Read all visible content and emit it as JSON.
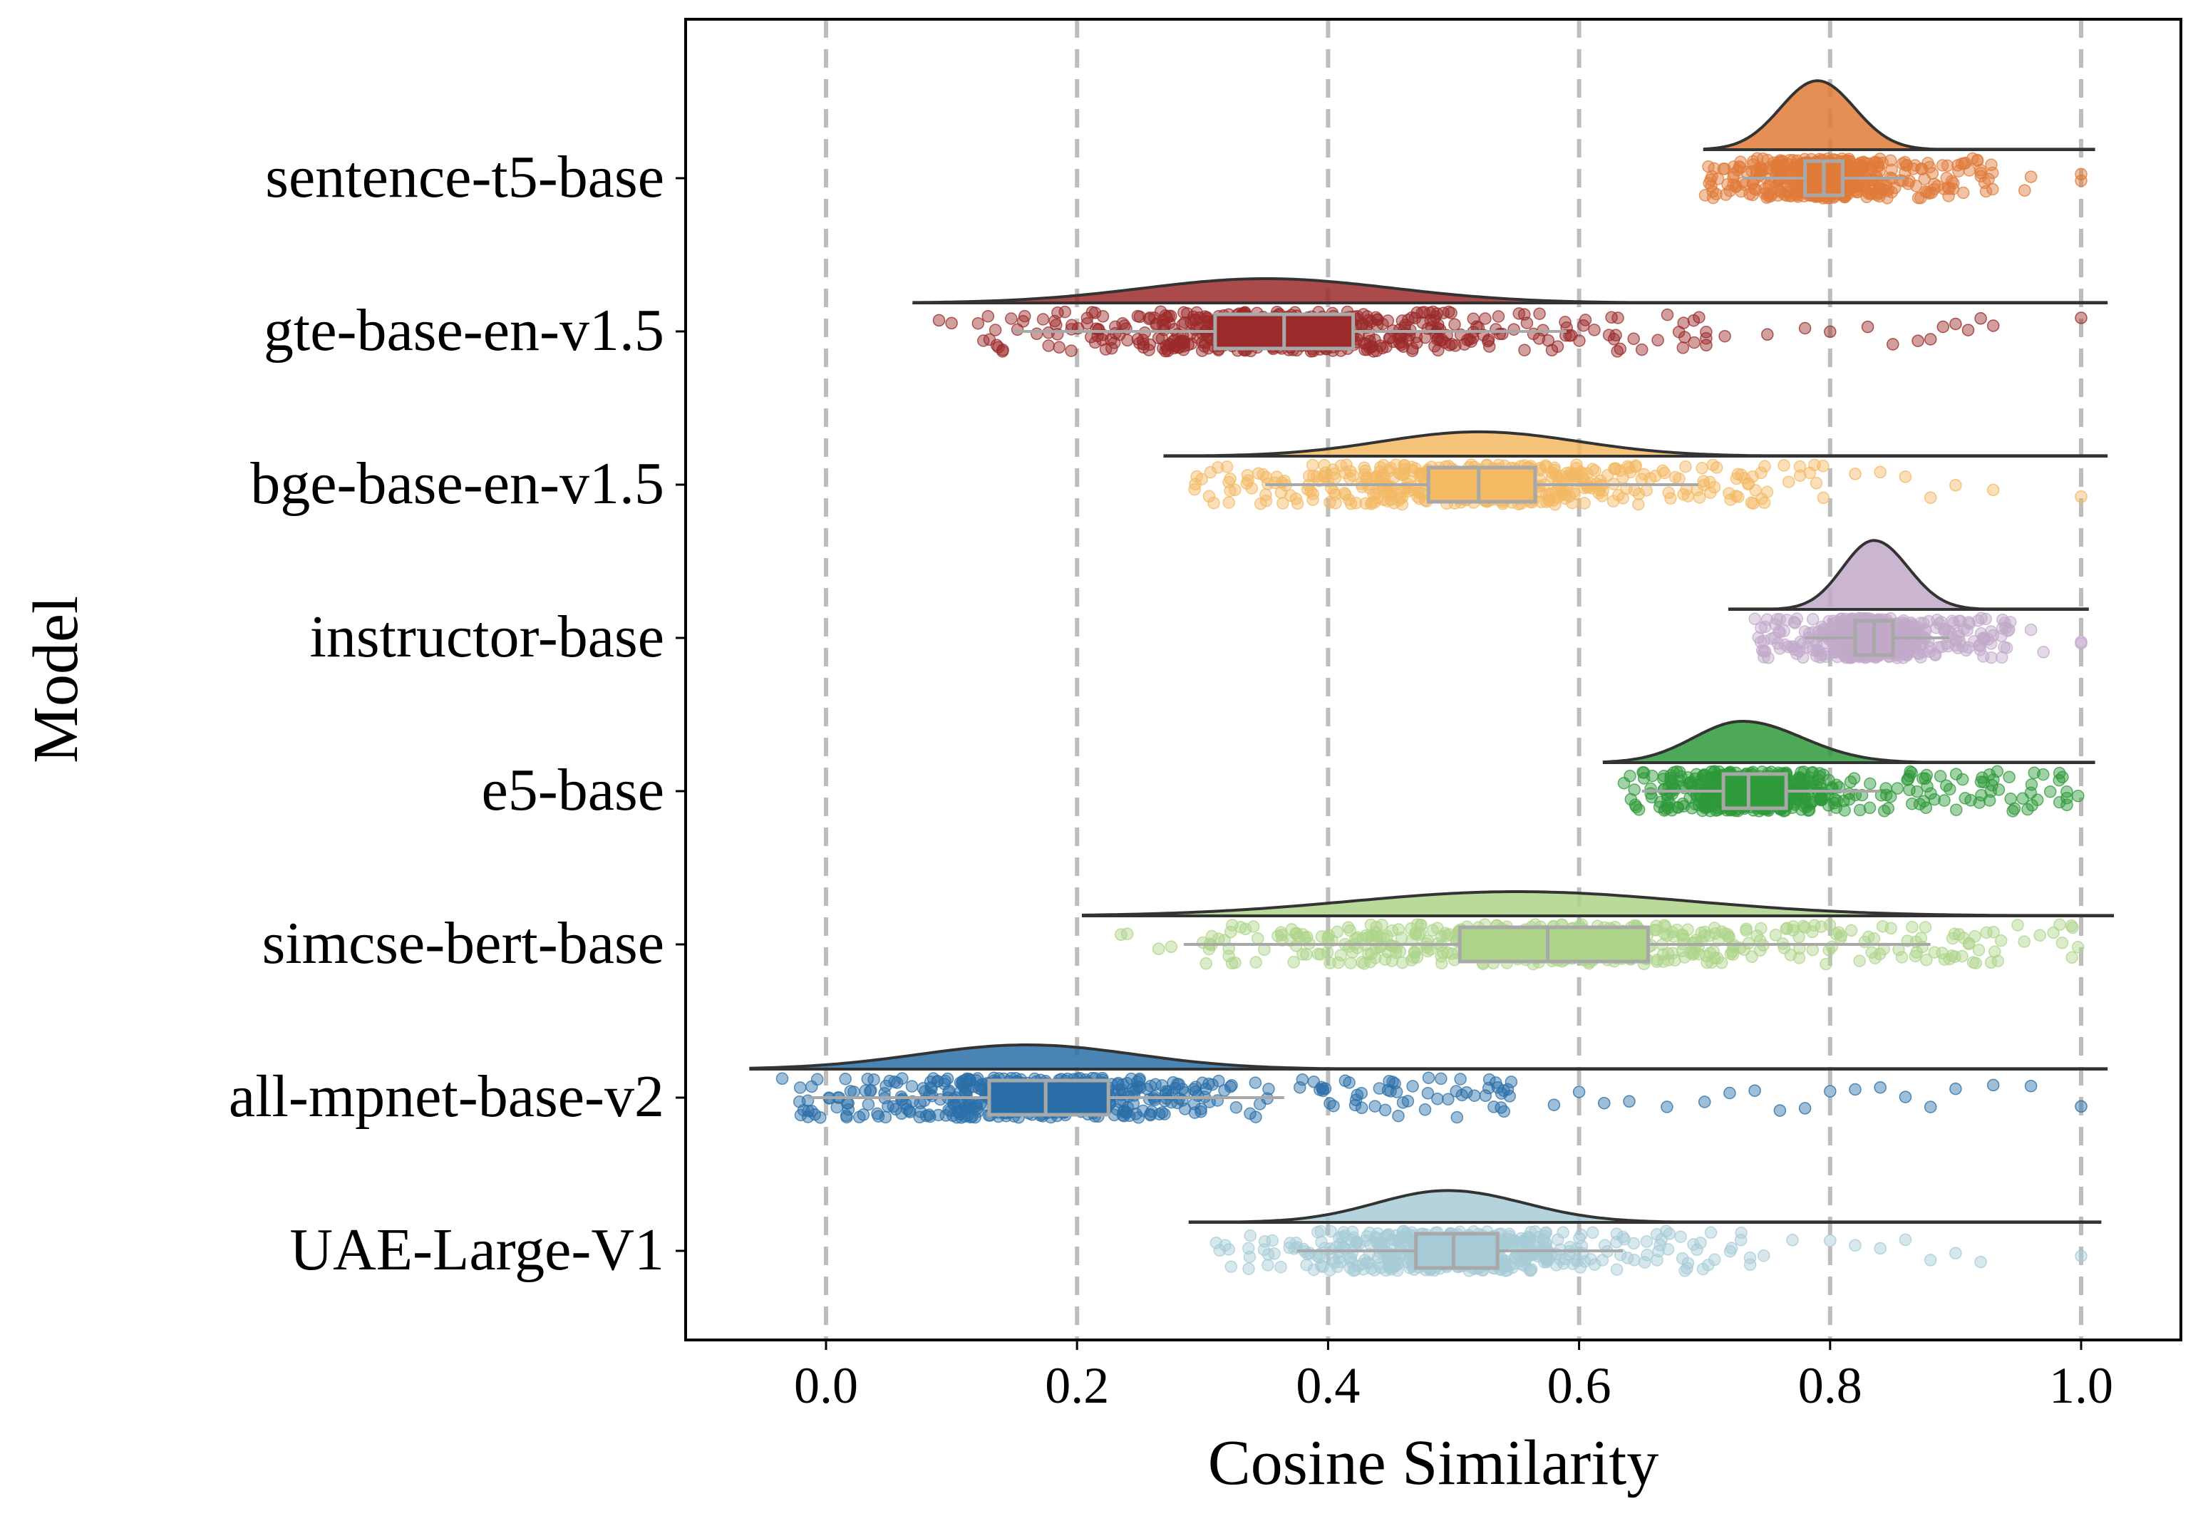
{
  "chart_data": {
    "type": "raincloud",
    "xlabel": "Cosine Similarity",
    "ylabel": "Model",
    "xlim": [
      -0.11,
      1.08
    ],
    "x_ticks": [
      0.0,
      0.2,
      0.4,
      0.6,
      0.8,
      1.0
    ],
    "x_tick_labels": [
      "0.0",
      "0.2",
      "0.4",
      "0.6",
      "0.8",
      "1.0"
    ],
    "grid": "vertical dashed at x ticks",
    "series": [
      {
        "name": "sentence-t5-base",
        "color": "#e07b39",
        "kde_peak": 0.79,
        "kde_range": [
          0.7,
          1.01
        ],
        "box": {
          "whisker_low": 0.73,
          "q1": 0.78,
          "median": 0.795,
          "q3": 0.81,
          "whisker_high": 0.86
        },
        "points_range": [
          0.7,
          0.93
        ],
        "outliers": [
          0.955,
          0.96,
          1.0,
          1.0
        ]
      },
      {
        "name": "gte-base-en-v1.5",
        "color": "#9b2a2a",
        "kde_peak": 0.35,
        "kde_range": [
          0.07,
          1.02
        ],
        "box": {
          "whisker_low": 0.15,
          "q1": 0.31,
          "median": 0.365,
          "q3": 0.42,
          "whisker_high": 0.59
        },
        "points_range": [
          0.12,
          0.72
        ],
        "outliers": [
          0.09,
          0.1,
          0.75,
          0.78,
          0.8,
          0.83,
          0.85,
          0.87,
          0.88,
          0.89,
          0.9,
          0.91,
          0.92,
          0.93,
          1.0
        ]
      },
      {
        "name": "bge-base-en-v1.5",
        "color": "#f3b963",
        "kde_peak": 0.52,
        "kde_range": [
          0.27,
          1.02
        ],
        "box": {
          "whisker_low": 0.35,
          "q1": 0.48,
          "median": 0.52,
          "q3": 0.565,
          "whisker_high": 0.695
        },
        "points_range": [
          0.29,
          0.8
        ],
        "outliers": [
          0.82,
          0.84,
          0.86,
          0.88,
          0.9,
          0.93,
          1.0
        ]
      },
      {
        "name": "instructor-base",
        "color": "#c2a9c9",
        "kde_peak": 0.835,
        "kde_range": [
          0.72,
          1.005
        ],
        "box": {
          "whisker_low": 0.78,
          "q1": 0.82,
          "median": 0.835,
          "q3": 0.85,
          "whisker_high": 0.895
        },
        "points_range": [
          0.74,
          0.945
        ],
        "outliers": [
          0.96,
          0.97,
          1.0,
          1.0
        ]
      },
      {
        "name": "e5-base",
        "color": "#2e9a3a",
        "kde_peak": 0.73,
        "kde_range": [
          0.62,
          1.01
        ],
        "box": {
          "whisker_low": 0.65,
          "q1": 0.715,
          "median": 0.735,
          "q3": 0.765,
          "whisker_high": 0.84
        },
        "points_range": [
          0.635,
          1.0
        ],
        "outliers": []
      },
      {
        "name": "simcse-bert-base",
        "color": "#aed48a",
        "kde_peak": 0.55,
        "kde_range": [
          0.205,
          1.025
        ],
        "box": {
          "whisker_low": 0.285,
          "q1": 0.505,
          "median": 0.575,
          "q3": 0.655,
          "whisker_high": 0.88
        },
        "points_range": [
          0.3,
          1.0
        ],
        "outliers": [
          0.235,
          0.24,
          0.265,
          0.275
        ]
      },
      {
        "name": "all-mpnet-base-v2",
        "color": "#2a6fa8",
        "kde_peak": 0.16,
        "kde_range": [
          -0.06,
          1.02
        ],
        "box": {
          "whisker_low": -0.015,
          "q1": 0.13,
          "median": 0.175,
          "q3": 0.225,
          "whisker_high": 0.365
        },
        "points_range": [
          -0.035,
          0.55
        ],
        "outliers": [
          0.58,
          0.6,
          0.62,
          0.64,
          0.67,
          0.7,
          0.72,
          0.74,
          0.76,
          0.78,
          0.8,
          0.82,
          0.84,
          0.86,
          0.88,
          0.9,
          0.93,
          0.96,
          1.0
        ]
      },
      {
        "name": "UAE-Large-V1",
        "color": "#a7cbd6",
        "kde_peak": 0.495,
        "kde_range": [
          0.29,
          1.015
        ],
        "box": {
          "whisker_low": 0.375,
          "q1": 0.47,
          "median": 0.5,
          "q3": 0.535,
          "whisker_high": 0.635
        },
        "points_range": [
          0.31,
          0.75
        ],
        "outliers": [
          0.77,
          0.8,
          0.82,
          0.84,
          0.86,
          0.88,
          0.9,
          0.92,
          1.0
        ]
      }
    ]
  }
}
